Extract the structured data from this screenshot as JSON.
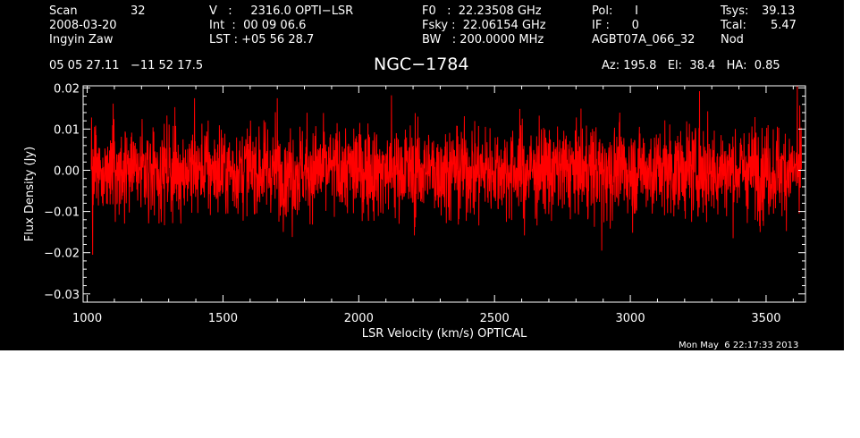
{
  "header": {
    "col1": {
      "scan_label": "Scan",
      "scan_value": "32",
      "date": "2008-03-20",
      "observer": "Ingyin Zaw"
    },
    "col2": {
      "v_line": "V   :     2316.0 OPTI−LSR",
      "int_line": "Int  :  00 09 06.6",
      "lst_line": "LST : +05 56 28.7"
    },
    "col3": {
      "f0_line": "F0   :  22.23508 GHz",
      "fsky_line": "Fsky :  22.06154 GHz",
      "bw_line": "BW   : 200.0000 MHz"
    },
    "col4": {
      "pol_line": "Pol:      I",
      "if_line": "IF :      0",
      "proj_line": "AGBT07A_066_32"
    },
    "col5": {
      "tsys_label": "Tsys:",
      "tsys_value": "39.13",
      "tcal_label": "Tcal:",
      "tcal_value": "5.47",
      "mode": "Nod"
    },
    "coords": "05 05 27.11   −11 52 17.5",
    "source": "NGC−1784",
    "pointing": "Az: 195.8   El:  38.4   HA:  0.85"
  },
  "footer_timestamp": "Mon May  6 22:17:33 2013",
  "chart_data": {
    "type": "line",
    "title": "NGC−1784",
    "xlabel": "LSR Velocity (km/s) OPTICAL",
    "ylabel": "Flux Density (Jy)",
    "xlim": [
      985,
      3645
    ],
    "ylim": [
      -0.032,
      0.0205
    ],
    "xticks": [
      1000,
      1500,
      2000,
      2500,
      3000,
      3500
    ],
    "xtick_labels": [
      "1000",
      "1500",
      "2000",
      "2500",
      "3000",
      "3500"
    ],
    "yticks": [
      -0.03,
      -0.02,
      -0.01,
      0.0,
      0.01,
      0.02
    ],
    "ytick_labels": [
      "−0.03",
      "−0.02",
      "−0.01",
      "0.00",
      "0.01",
      "0.02"
    ],
    "series": [
      {
        "color": "#ff0000",
        "x_range": [
          1015,
          3630
        ],
        "mean": 0.0,
        "rms": 0.0055,
        "peaks": [
          {
            "x": 1020,
            "y": -0.0205
          },
          {
            "x": 1095,
            "y": 0.0162
          },
          {
            "x": 1395,
            "y": 0.0175
          },
          {
            "x": 1700,
            "y": 0.0175
          },
          {
            "x": 1755,
            "y": -0.0162
          },
          {
            "x": 2120,
            "y": 0.0182
          },
          {
            "x": 2205,
            "y": -0.0158
          },
          {
            "x": 2610,
            "y": -0.0158
          },
          {
            "x": 2895,
            "y": -0.0195
          },
          {
            "x": 3255,
            "y": 0.0192
          },
          {
            "x": 3490,
            "y": -0.0135
          },
          {
            "x": 3615,
            "y": 0.0205
          },
          {
            "x": 3622,
            "y": -0.0105
          }
        ]
      }
    ],
    "grid": false,
    "colors": {
      "background": "#000000",
      "foreground": "#ffffff",
      "trace": "#ff0000"
    }
  }
}
